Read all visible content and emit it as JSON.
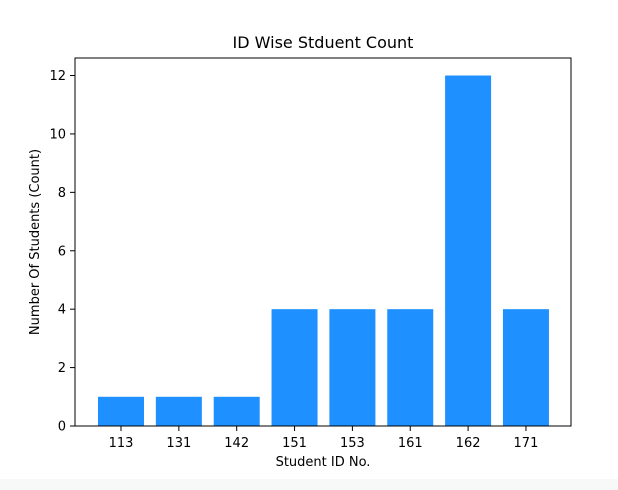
{
  "chart_data": {
    "type": "bar",
    "title": "ID Wise Stduent Count",
    "xlabel": "Student ID No.",
    "ylabel": "Number Of Students (Count)",
    "categories": [
      "113",
      "131",
      "142",
      "151",
      "153",
      "161",
      "162",
      "171"
    ],
    "values": [
      1,
      1,
      1,
      4,
      4,
      4,
      12,
      4
    ],
    "ylim": [
      0,
      12.6
    ],
    "yticks": [
      "0",
      "2",
      "4",
      "6",
      "8",
      "10",
      "12"
    ],
    "grid": false,
    "legend": "none",
    "colors": {
      "bar": "#1e90ff",
      "axes": "#000000",
      "background": "#ffffff"
    }
  }
}
